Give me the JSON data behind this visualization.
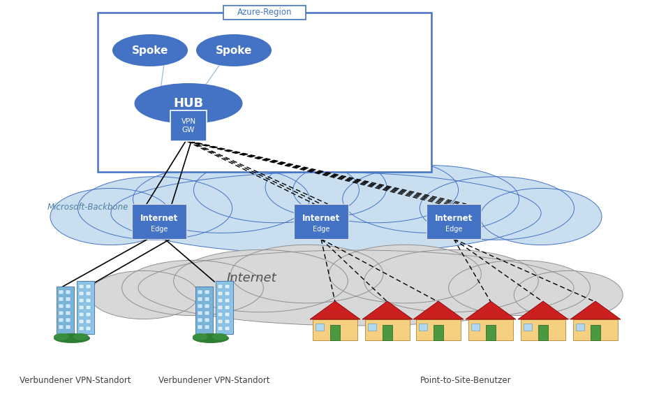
{
  "azure_region_label": "Azure-Region",
  "ms_backbone_label": "Microsoft-Backbone",
  "internet_label": "Internet",
  "spoke_labels": [
    "Spoke",
    "Spoke"
  ],
  "hub_label": "HUB",
  "vpn_gw_label": "VPN\nGW",
  "vpn_site_label": "Verbundener VPN-Standort",
  "point_site_label": "Point-to-Site-Benutzer",
  "azure_box_border": "#4472c4",
  "azure_region_text_color": "#4472c4",
  "ms_backbone_fill": "#c9dff0",
  "ms_backbone_border": "#4472c4",
  "internet_cloud_fill": "#d8d8d8",
  "internet_cloud_border": "#909090",
  "spoke_color": "#4472c4",
  "spoke_text_color": "#ffffff",
  "hub_color": "#4472c4",
  "hub_text_color": "#ffffff",
  "vpn_gw_color": "#4472c4",
  "vpn_gw_text_color": "#ffffff",
  "ie_color": "#4472c4",
  "ie_text_color": "#ffffff",
  "line_color": "#000000",
  "label_color": "#404040",
  "spoke_line_color": "#a0c0e0"
}
